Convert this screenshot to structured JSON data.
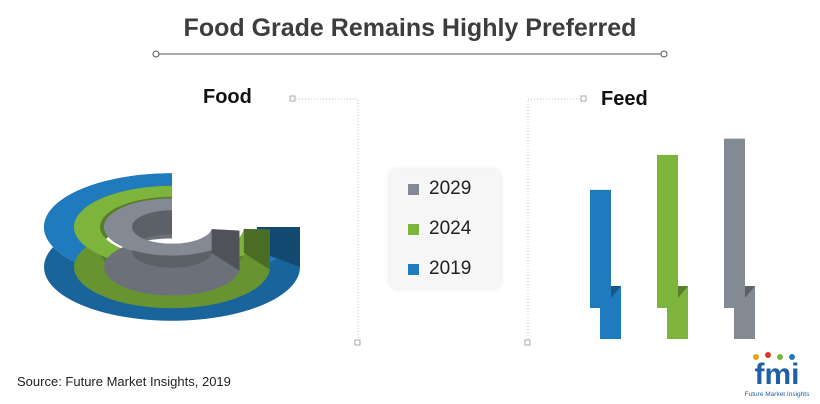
{
  "title": "Food Grade Remains Highly Preferred",
  "source": "Source: Future Market Insights, 2019",
  "logo": {
    "text": "fmi",
    "subtext": "Future Market Insights"
  },
  "colors": {
    "2029": "#848a94",
    "2024": "#7db43c",
    "2019": "#1f7bbd"
  },
  "legend": [
    {
      "label": "2029",
      "color": "#848a94"
    },
    {
      "label": "2024",
      "color": "#7db43c"
    },
    {
      "label": "2019",
      "color": "#1f7bbd"
    }
  ],
  "chart_data": [
    {
      "type": "pie",
      "panel": "Food",
      "title": "Food",
      "series": [
        {
          "name": "2019",
          "share_of_ring": 0.75
        },
        {
          "name": "2024",
          "share_of_ring": 0.74
        },
        {
          "name": "2029",
          "share_of_ring": 0.73
        }
      ]
    },
    {
      "type": "bar",
      "panel": "Feed",
      "title": "Feed",
      "categories": [
        "2019",
        "2024",
        "2029"
      ],
      "values": [
        0.64,
        0.79,
        0.86
      ],
      "ylim": [
        0,
        1
      ],
      "grid": false
    }
  ]
}
